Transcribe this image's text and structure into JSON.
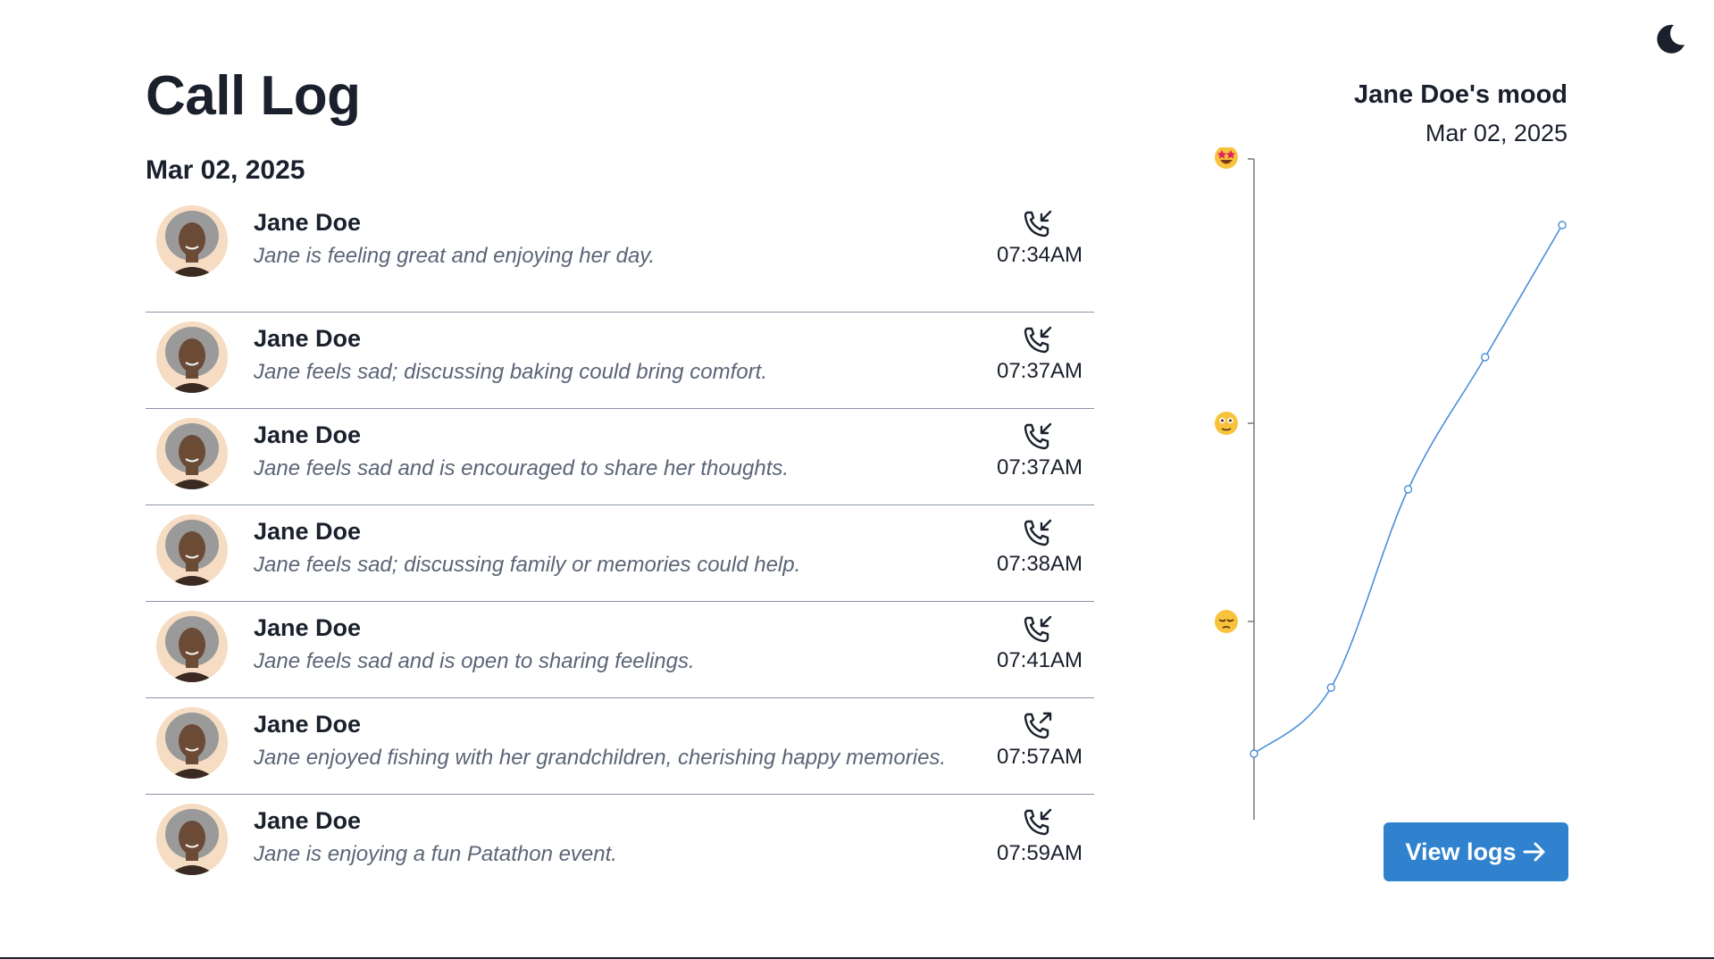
{
  "page": {
    "title": "Call Log",
    "date": "Mar 02, 2025",
    "theme_icon": "moon-icon"
  },
  "calls": [
    {
      "name": "Jane Doe",
      "summary": "Jane is feeling great and enjoying her day.",
      "time": "07:34AM",
      "direction": "incoming"
    },
    {
      "name": "Jane Doe",
      "summary": "Jane feels sad; discussing baking could bring comfort.",
      "time": "07:37AM",
      "direction": "incoming"
    },
    {
      "name": "Jane Doe",
      "summary": "Jane feels sad and is encouraged to share her thoughts.",
      "time": "07:37AM",
      "direction": "incoming"
    },
    {
      "name": "Jane Doe",
      "summary": "Jane feels sad; discussing family or memories could help.",
      "time": "07:38AM",
      "direction": "incoming"
    },
    {
      "name": "Jane Doe",
      "summary": "Jane feels sad and is open to sharing feelings.",
      "time": "07:41AM",
      "direction": "incoming"
    },
    {
      "name": "Jane Doe",
      "summary": "Jane enjoyed fishing with her grandchildren, cherishing happy memories.",
      "time": "07:57AM",
      "direction": "outgoing"
    },
    {
      "name": "Jane Doe",
      "summary": "Jane is enjoying a fun Patathon event.",
      "time": "07:59AM",
      "direction": "incoming"
    }
  ],
  "mood": {
    "title": "Jane Doe's mood",
    "date": "Mar 02, 2025",
    "button_label": "View logs",
    "button_icon": "arrow-right-icon"
  },
  "chart_data": {
    "type": "line",
    "title": "Jane Doe's mood",
    "y_tick_icons": [
      "star-struck-emoji",
      "neutral-face-emoji",
      "sad-face-emoji"
    ],
    "y_ticks": [
      1.0,
      0.6,
      0.3
    ],
    "ylim": [
      0,
      1
    ],
    "grid": false,
    "series": [
      {
        "values": [
          0.1,
          0.2,
          0.5,
          0.7,
          0.9
        ],
        "color": "#4a90d9"
      }
    ]
  },
  "colors": {
    "accent": "#3182ce",
    "line": "#4a90d9",
    "text": "#1a202c",
    "muted": "#5b6577",
    "divider": "#8a94a6"
  }
}
